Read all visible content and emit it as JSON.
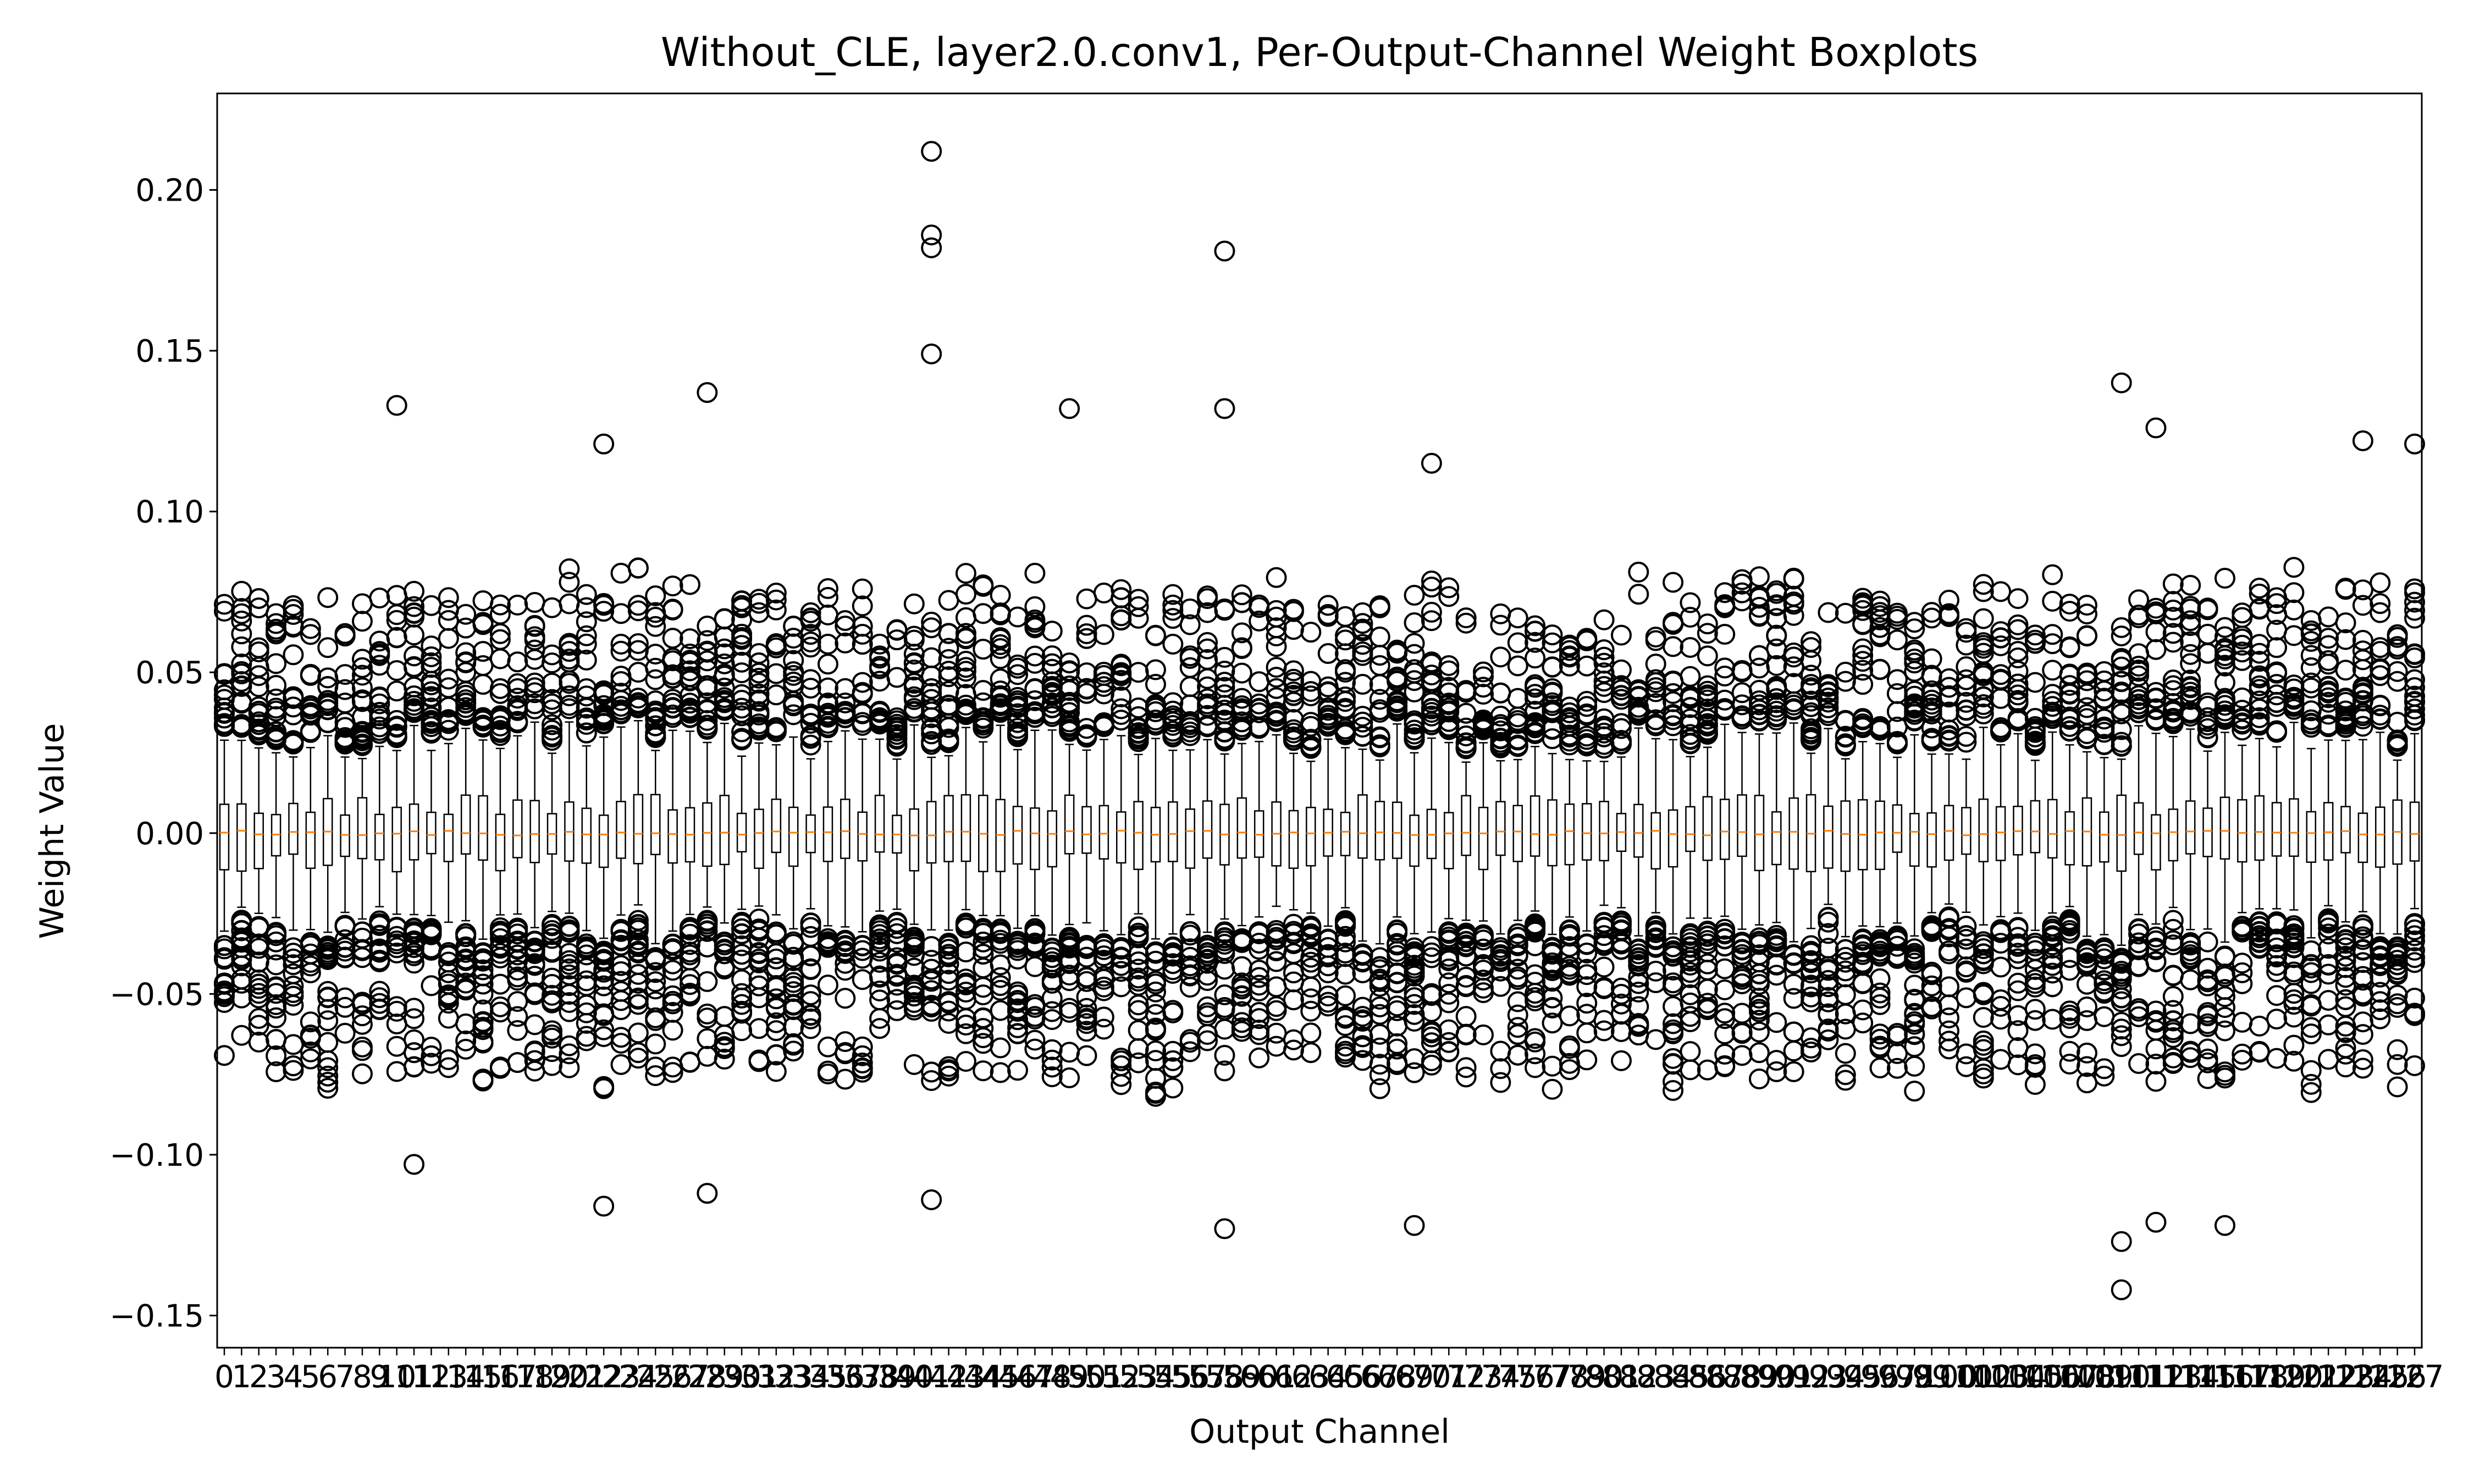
{
  "chart_data": {
    "type": "box",
    "title": "Without_CLE, layer2.0.conv1, Per-Output-Channel Weight Boxplots",
    "xlabel": "Output Channel",
    "ylabel": "Weight Value",
    "ylim": [
      -0.16,
      0.23
    ],
    "yticks": [
      -0.15,
      -0.1,
      -0.05,
      0.0,
      0.05,
      0.1,
      0.15,
      0.2
    ],
    "ytick_labels": [
      "−0.15",
      "−0.10",
      "−0.05",
      "0.00",
      "0.05",
      "0.10",
      "0.15",
      "0.20"
    ],
    "n_channels": 128,
    "grid": false,
    "legend": "none",
    "colors": {
      "box": "#000000",
      "median": "#ff7f0e",
      "flier": "#000000"
    },
    "notable_outliers": [
      {
        "channel": 10,
        "value": 0.133
      },
      {
        "channel": 11,
        "value": -0.103
      },
      {
        "channel": 22,
        "value": -0.116
      },
      {
        "channel": 22,
        "value": 0.121
      },
      {
        "channel": 28,
        "value": 0.137
      },
      {
        "channel": 28,
        "value": -0.112
      },
      {
        "channel": 41,
        "value": 0.212
      },
      {
        "channel": 41,
        "value": 0.186
      },
      {
        "channel": 41,
        "value": 0.182
      },
      {
        "channel": 41,
        "value": 0.149
      },
      {
        "channel": 41,
        "value": -0.114
      },
      {
        "channel": 49,
        "value": 0.132
      },
      {
        "channel": 58,
        "value": 0.181
      },
      {
        "channel": 58,
        "value": 0.132
      },
      {
        "channel": 58,
        "value": -0.123
      },
      {
        "channel": 69,
        "value": -0.122
      },
      {
        "channel": 70,
        "value": 0.115
      },
      {
        "channel": 110,
        "value": 0.14
      },
      {
        "channel": 110,
        "value": -0.127
      },
      {
        "channel": 110,
        "value": -0.142
      },
      {
        "channel": 112,
        "value": 0.126
      },
      {
        "channel": 112,
        "value": -0.121
      },
      {
        "channel": 116,
        "value": -0.122
      },
      {
        "channel": 124,
        "value": 0.122
      },
      {
        "channel": 127,
        "value": 0.121
      }
    ]
  }
}
